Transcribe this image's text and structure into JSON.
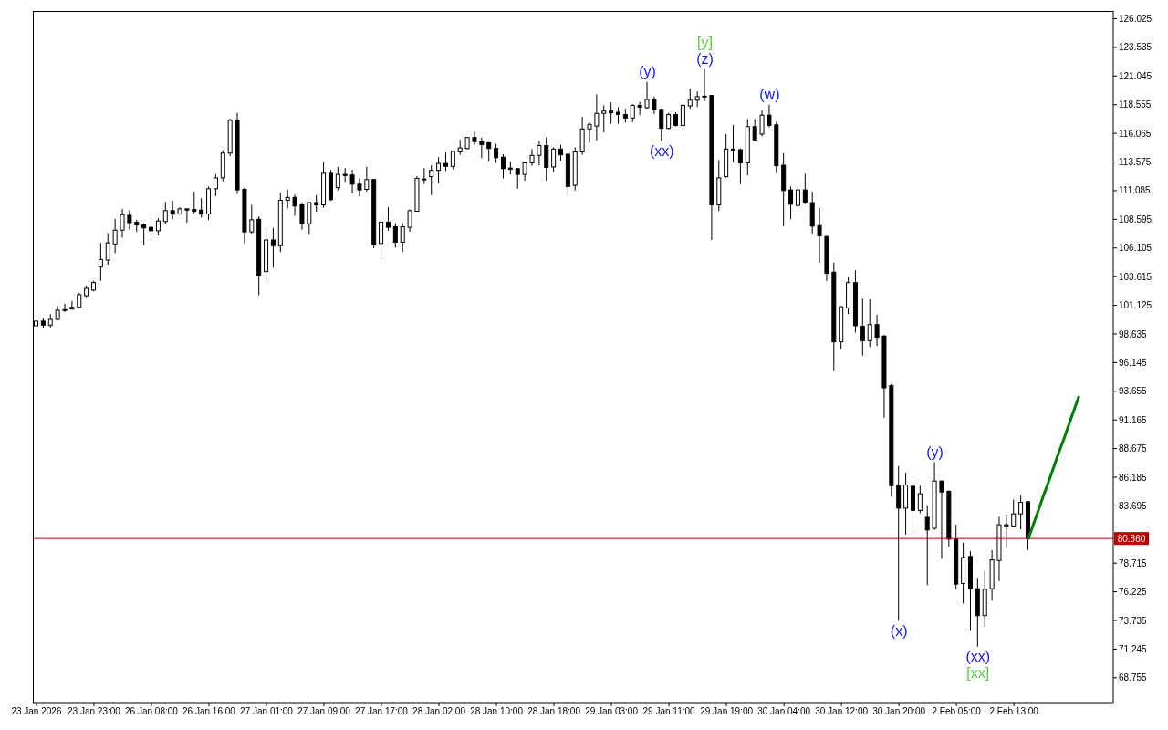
{
  "chart_data": {
    "type": "candlestick",
    "categories": [
      "23 Jan 2026",
      null,
      null,
      null,
      null,
      null,
      null,
      null,
      "23 Jan 23:00",
      null,
      null,
      null,
      null,
      null,
      null,
      null,
      "26 Jan 08:00",
      null,
      null,
      null,
      null,
      null,
      null,
      null,
      "26 Jan 16:00",
      null,
      null,
      null,
      null,
      null,
      null,
      null,
      "27 Jan 01:00",
      null,
      null,
      null,
      null,
      null,
      null,
      null,
      "27 Jan 09:00",
      null,
      null,
      null,
      null,
      null,
      null,
      null,
      "27 Jan 17:00",
      null,
      null,
      null,
      null,
      null,
      null,
      null,
      "28 Jan 02:00",
      null,
      null,
      null,
      null,
      null,
      null,
      null,
      "28 Jan 10:00",
      null,
      null,
      null,
      null,
      null,
      null,
      null,
      "28 Jan 18:00",
      null,
      null,
      null,
      null,
      null,
      null,
      null,
      "29 Jan 03:00",
      null,
      null,
      null,
      null,
      null,
      null,
      null,
      "29 Jan 11:00",
      null,
      null,
      null,
      null,
      null,
      null,
      null,
      "29 Jan 19:00",
      null,
      null,
      null,
      null,
      null,
      null,
      null,
      "30 Jan 04:00",
      null,
      null,
      null,
      null,
      null,
      null,
      null,
      "30 Jan 12:00",
      null,
      null,
      null,
      null,
      null,
      null,
      null,
      "30 Jan 20:00",
      null,
      null,
      null,
      null,
      null,
      null,
      null,
      "2 Feb 05:00",
      null,
      null,
      null,
      null,
      null,
      null,
      null,
      "2 Feb 13:00",
      null,
      null,
      null,
      null,
      null,
      null,
      null,
      null,
      null
    ],
    "series": [
      {
        "type": "candlestick",
        "color": "#000000",
        "ohlc": [
          [
            99.35,
            99.8,
            99.3,
            99.75
          ],
          [
            99.75,
            100.0,
            99.1,
            99.4
          ],
          [
            99.4,
            100.35,
            99.15,
            99.9
          ],
          [
            99.9,
            101.05,
            99.8,
            100.7
          ],
          [
            100.7,
            101.25,
            100.55,
            100.75
          ],
          [
            100.8,
            101.5,
            100.75,
            100.95
          ],
          [
            100.95,
            102.2,
            100.9,
            102.05
          ],
          [
            101.95,
            102.85,
            101.75,
            102.6
          ],
          [
            102.45,
            103.25,
            102.35,
            103.1
          ],
          [
            104.45,
            106.55,
            103.25,
            105.1
          ],
          [
            105.05,
            107.4,
            104.65,
            106.55
          ],
          [
            106.45,
            108.65,
            105.65,
            107.65
          ],
          [
            107.65,
            109.5,
            107.0,
            109.0
          ],
          [
            108.95,
            109.4,
            107.7,
            108.3
          ],
          [
            108.35,
            108.55,
            107.5,
            108.1
          ],
          [
            108.1,
            108.2,
            106.35,
            107.85
          ],
          [
            107.9,
            108.75,
            107.3,
            107.6
          ],
          [
            107.6,
            108.7,
            107.2,
            108.45
          ],
          [
            108.4,
            110.1,
            108.2,
            109.35
          ],
          [
            109.35,
            110.2,
            108.6,
            109.05
          ],
          [
            109.05,
            109.65,
            109.05,
            109.5
          ],
          [
            109.5,
            109.55,
            108.3,
            109.4
          ],
          [
            109.45,
            111.0,
            109.1,
            109.3
          ],
          [
            109.4,
            110.45,
            108.75,
            109.05
          ],
          [
            109.05,
            111.45,
            108.55,
            111.25
          ],
          [
            111.25,
            112.5,
            110.6,
            112.2
          ],
          [
            112.2,
            114.6,
            111.9,
            114.35
          ],
          [
            114.35,
            117.35,
            114.1,
            117.2
          ],
          [
            117.2,
            117.85,
            110.8,
            111.15
          ],
          [
            111.2,
            111.35,
            106.5,
            107.5
          ],
          [
            107.5,
            109.85,
            107.35,
            108.55
          ],
          [
            108.6,
            108.85,
            102.0,
            103.7
          ],
          [
            104.05,
            107.95,
            103.05,
            106.8
          ],
          [
            106.8,
            107.85,
            104.4,
            106.3
          ],
          [
            106.3,
            110.9,
            105.75,
            110.25
          ],
          [
            110.25,
            111.2,
            109.55,
            110.5
          ],
          [
            110.5,
            110.75,
            108.9,
            109.75
          ],
          [
            109.85,
            110.0,
            107.7,
            108.2
          ],
          [
            108.2,
            110.1,
            107.3,
            110.05
          ],
          [
            110.05,
            110.7,
            109.25,
            109.85
          ],
          [
            109.85,
            113.55,
            109.6,
            112.6
          ],
          [
            112.6,
            112.9,
            110.2,
            110.3
          ],
          [
            111.35,
            113.15,
            111.1,
            112.5
          ],
          [
            112.5,
            113.05,
            111.85,
            112.4
          ],
          [
            112.45,
            112.9,
            110.85,
            111.65
          ],
          [
            111.65,
            112.15,
            110.6,
            111.15
          ],
          [
            111.2,
            113.15,
            111.0,
            112.05
          ],
          [
            112.05,
            112.1,
            106.1,
            106.4
          ],
          [
            106.5,
            108.7,
            105.05,
            108.35
          ],
          [
            108.35,
            109.65,
            107.6,
            107.9
          ],
          [
            107.95,
            108.25,
            106.15,
            106.6
          ],
          [
            106.6,
            108.25,
            105.75,
            107.95
          ],
          [
            107.9,
            109.45,
            107.5,
            109.35
          ],
          [
            109.3,
            112.35,
            109.25,
            112.15
          ],
          [
            112.05,
            113.05,
            111.65,
            112.1
          ],
          [
            112.3,
            113.3,
            110.7,
            112.85
          ],
          [
            112.85,
            114.0,
            111.7,
            113.45
          ],
          [
            113.45,
            114.4,
            112.8,
            113.2
          ],
          [
            113.2,
            114.55,
            112.95,
            114.5
          ],
          [
            114.45,
            115.5,
            114.2,
            114.8
          ],
          [
            114.75,
            115.75,
            114.7,
            115.7
          ],
          [
            115.7,
            116.2,
            115.05,
            115.35
          ],
          [
            115.4,
            115.7,
            113.9,
            115.1
          ],
          [
            115.25,
            115.3,
            113.65,
            114.75
          ],
          [
            114.75,
            115.15,
            113.5,
            113.95
          ],
          [
            114.0,
            114.25,
            112.15,
            113.0
          ],
          [
            113.05,
            113.6,
            112.5,
            112.95
          ],
          [
            113.0,
            113.05,
            111.25,
            112.5
          ],
          [
            112.5,
            113.6,
            111.95,
            113.5
          ],
          [
            113.5,
            114.7,
            113.25,
            114.15
          ],
          [
            114.15,
            115.38,
            113.3,
            115.0
          ],
          [
            115.0,
            115.7,
            111.95,
            113.1
          ],
          [
            113.15,
            114.85,
            112.7,
            114.7
          ],
          [
            114.7,
            115.05,
            113.7,
            114.2
          ],
          [
            114.25,
            114.3,
            110.55,
            111.45
          ],
          [
            111.55,
            114.85,
            111.1,
            114.45
          ],
          [
            114.45,
            117.5,
            114.2,
            116.45
          ],
          [
            116.45,
            117.0,
            115.25,
            116.85
          ],
          [
            116.7,
            119.45,
            115.45,
            117.8
          ],
          [
            117.8,
            118.5,
            116.15,
            118.0
          ],
          [
            118.0,
            118.75,
            116.9,
            117.85
          ],
          [
            117.9,
            118.35,
            116.9,
            117.7
          ],
          [
            117.7,
            118.2,
            117.0,
            117.4
          ],
          [
            117.4,
            118.6,
            117.05,
            118.5
          ],
          [
            118.5,
            118.8,
            117.65,
            118.35
          ],
          [
            118.3,
            120.55,
            118.2,
            119.0
          ],
          [
            119.0,
            119.25,
            117.75,
            118.15
          ],
          [
            118.15,
            118.2,
            115.41,
            116.5
          ],
          [
            116.5,
            117.85,
            116.4,
            117.7
          ],
          [
            117.7,
            117.9,
            116.65,
            116.75
          ],
          [
            116.75,
            118.6,
            116.25,
            118.5
          ],
          [
            118.45,
            119.95,
            118.2,
            118.95
          ],
          [
            118.95,
            119.7,
            118.35,
            119.25
          ],
          [
            119.25,
            121.65,
            118.85,
            119.3
          ],
          [
            119.35,
            119.4,
            106.8,
            109.85
          ],
          [
            109.85,
            113.75,
            109.3,
            112.2
          ],
          [
            112.3,
            116.0,
            112.2,
            114.7
          ],
          [
            114.7,
            116.8,
            113.55,
            114.6
          ],
          [
            114.65,
            114.75,
            111.65,
            113.5
          ],
          [
            113.5,
            117.3,
            112.4,
            116.65
          ],
          [
            116.65,
            117.3,
            115.45,
            115.5
          ],
          [
            116.0,
            118.1,
            115.8,
            117.65
          ],
          [
            117.65,
            118.55,
            116.6,
            116.75
          ],
          [
            116.8,
            117.05,
            112.6,
            113.25
          ],
          [
            113.3,
            114.35,
            108.0,
            111.1
          ],
          [
            111.15,
            111.45,
            108.6,
            109.9
          ],
          [
            109.8,
            111.55,
            109.7,
            111.15
          ],
          [
            111.15,
            112.55,
            109.9,
            110.05
          ],
          [
            110.05,
            111.0,
            107.35,
            108.0
          ],
          [
            108.05,
            109.6,
            104.8,
            107.15
          ],
          [
            107.1,
            107.15,
            103.25,
            103.9
          ],
          [
            104.0,
            104.85,
            95.4,
            97.95
          ],
          [
            97.95,
            101.05,
            97.3,
            101.0
          ],
          [
            100.9,
            103.55,
            100.35,
            103.1
          ],
          [
            103.1,
            104.15,
            98.75,
            99.35
          ],
          [
            99.3,
            101.7,
            96.75,
            98.05
          ],
          [
            98.05,
            101.65,
            97.5,
            99.45
          ],
          [
            99.45,
            100.3,
            97.6,
            98.35
          ],
          [
            98.45,
            98.55,
            91.35,
            93.95
          ],
          [
            94.15,
            94.3,
            84.5,
            85.45
          ],
          [
            85.5,
            87.15,
            73.7,
            83.5
          ],
          [
            83.5,
            86.6,
            81.2,
            85.5
          ],
          [
            85.4,
            85.95,
            81.45,
            83.3
          ],
          [
            83.3,
            85.45,
            83.05,
            84.75
          ],
          [
            82.7,
            83.75,
            76.8,
            81.6
          ],
          [
            81.75,
            87.5,
            81.6,
            85.85
          ],
          [
            85.85,
            85.9,
            79.1,
            84.9
          ],
          [
            84.95,
            85.05,
            80.1,
            80.8
          ],
          [
            80.8,
            82.05,
            76.45,
            76.9
          ],
          [
            76.95,
            80.5,
            75.2,
            79.2
          ],
          [
            79.3,
            79.75,
            72.9,
            76.5
          ],
          [
            76.5,
            77.45,
            71.45,
            74.15
          ],
          [
            74.15,
            78.05,
            73.15,
            76.45
          ],
          [
            76.5,
            79.85,
            75.45,
            79.0
          ],
          [
            78.95,
            82.75,
            77.15,
            82.05
          ],
          [
            82.05,
            82.95,
            80.05,
            81.95
          ],
          [
            81.95,
            84.25,
            81.85,
            83.0
          ],
          [
            83.0,
            84.6,
            81.65,
            84.0
          ],
          [
            84.05,
            84.1,
            79.85,
            80.86
          ],
          null,
          null,
          null,
          null,
          null,
          null,
          null
        ]
      },
      {
        "type": "line",
        "color": "#008000",
        "values": [
          null,
          null,
          null,
          null,
          null,
          null,
          null,
          null,
          null,
          null,
          null,
          null,
          null,
          null,
          null,
          null,
          null,
          null,
          null,
          null,
          null,
          null,
          null,
          null,
          null,
          null,
          null,
          null,
          null,
          null,
          null,
          null,
          null,
          null,
          null,
          null,
          null,
          null,
          null,
          null,
          null,
          null,
          null,
          null,
          null,
          null,
          null,
          null,
          null,
          null,
          null,
          null,
          null,
          null,
          null,
          null,
          null,
          null,
          null,
          null,
          null,
          null,
          null,
          null,
          null,
          null,
          null,
          null,
          null,
          null,
          null,
          null,
          null,
          null,
          null,
          null,
          null,
          null,
          null,
          null,
          null,
          null,
          null,
          null,
          null,
          null,
          null,
          null,
          null,
          null,
          null,
          null,
          null,
          null,
          null,
          null,
          null,
          null,
          null,
          null,
          null,
          null,
          null,
          null,
          null,
          null,
          null,
          null,
          null,
          null,
          null,
          null,
          null,
          null,
          null,
          null,
          null,
          null,
          null,
          null,
          null,
          null,
          null,
          null,
          null,
          null,
          null,
          null,
          null,
          null,
          null,
          null,
          null,
          null,
          null,
          null,
          null,
          null,
          80.86,
          82.6,
          84.4,
          86.1,
          87.9,
          89.6,
          91.4,
          93.15
        ]
      }
    ],
    "ylim": [
      66.6,
      126.7
    ],
    "yticks": [
      126.025,
      123.535,
      121.045,
      118.555,
      116.065,
      113.575,
      111.085,
      108.595,
      106.105,
      103.615,
      101.125,
      98.635,
      96.145,
      93.655,
      91.165,
      88.675,
      86.185,
      83.695,
      78.715,
      76.225,
      73.735,
      71.245,
      68.755
    ],
    "ref_lines": [
      {
        "axis": "y",
        "value": 80.86,
        "label": "80.860",
        "color": "#c00000"
      }
    ],
    "annotations": [
      {
        "text": "(z)",
        "y": 121.65
      },
      {
        "text": "[y]",
        "y": 121.65
      },
      {
        "text": "(y)",
        "y": 120.55
      },
      {
        "text": "(xx)",
        "y": 115.41
      },
      {
        "text": "(w)",
        "y": 118.55
      },
      {
        "text": "(x)",
        "y": 73.7
      },
      {
        "text": "(y)",
        "y": 87.5
      },
      {
        "text": "(xx)",
        "y": 71.45
      },
      {
        "text": "[xx]",
        "y": 71.45
      }
    ]
  }
}
